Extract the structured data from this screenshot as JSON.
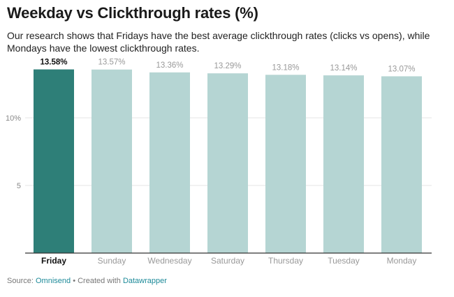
{
  "chart_data": {
    "type": "bar",
    "title": "Weekday vs Clickthrough rates (%)",
    "subtitle": "Our research shows that Fridays have the best average clickthrough rates (clicks vs opens), while Mondays have the lowest clickthrough rates.",
    "categories": [
      "Friday",
      "Sunday",
      "Wednesday",
      "Saturday",
      "Thursday",
      "Tuesday",
      "Monday"
    ],
    "values": [
      13.58,
      13.57,
      13.36,
      13.29,
      13.18,
      13.14,
      13.07
    ],
    "data_labels": [
      "13.58%",
      "13.57%",
      "13.36%",
      "13.29%",
      "13.18%",
      "13.14%",
      "13.07%"
    ],
    "highlight": "Friday",
    "yticks": [
      {
        "value": 5,
        "label": "5"
      },
      {
        "value": 10,
        "label": "10%"
      }
    ],
    "ylim": [
      0,
      14
    ],
    "grid": true,
    "colors": {
      "highlight": "#2e7f78",
      "default": "#b5d5d3"
    }
  },
  "footer": {
    "source_label": "Source:",
    "source": "Omnisend",
    "separator": "•",
    "created_label": "Created with",
    "tool": "Datawrapper"
  }
}
